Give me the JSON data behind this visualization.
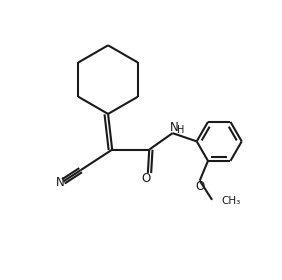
{
  "background_color": "#ffffff",
  "line_color": "#1a1a1a",
  "line_width": 1.5,
  "figsize": [
    2.82,
    2.8
  ],
  "dpi": 100,
  "xlim": [
    0,
    10
  ],
  "ylim": [
    0,
    10
  ]
}
